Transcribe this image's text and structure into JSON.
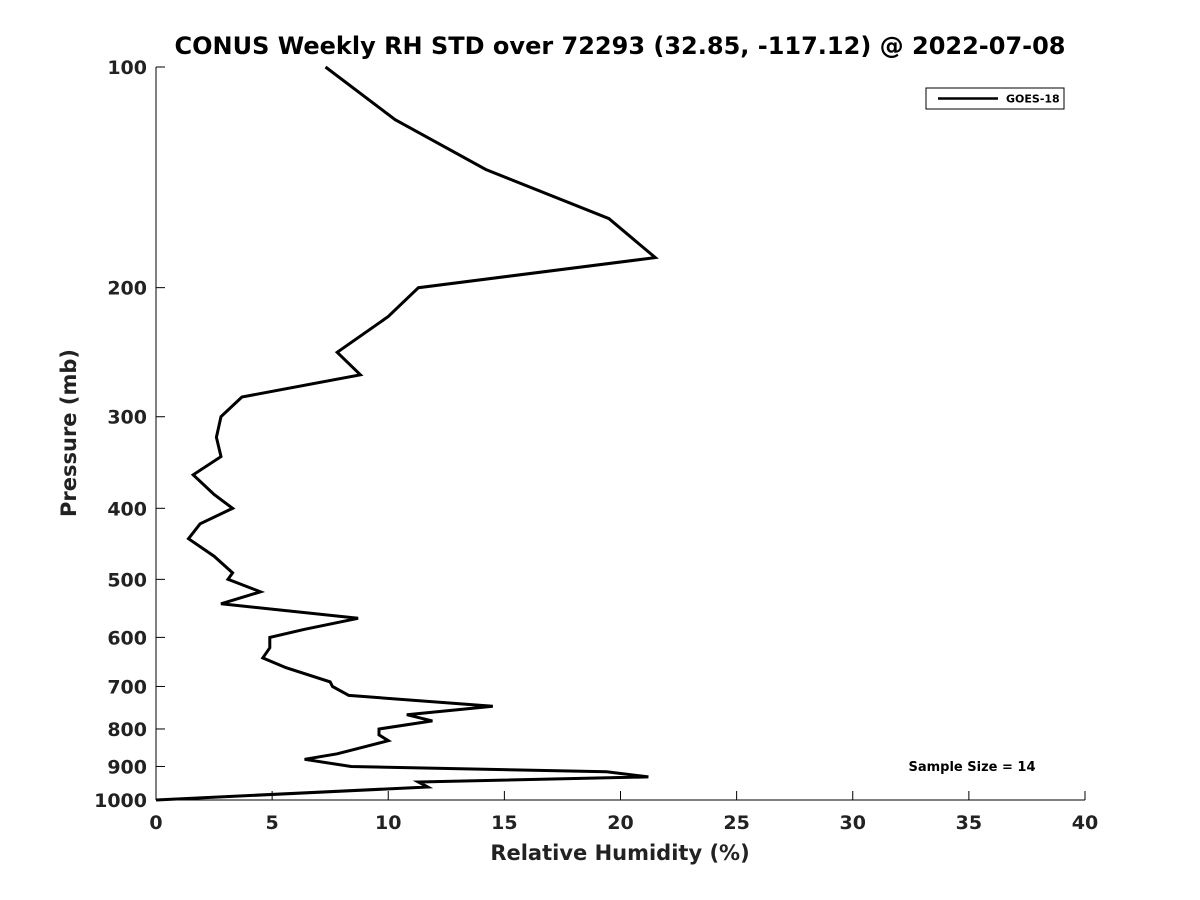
{
  "chart_data": {
    "type": "line",
    "title": "CONUS Weekly RH STD over 72293 (32.85, -117.12) @ 2022-07-08",
    "xlabel": "Relative Humidity (%)",
    "ylabel": "Pressure (mb)",
    "xlim": [
      0,
      40
    ],
    "ylim": [
      1000,
      100
    ],
    "y_scale": "log",
    "x_ticks": [
      0,
      5,
      10,
      15,
      20,
      25,
      30,
      35,
      40
    ],
    "x_tick_labels": [
      "0",
      "5",
      "10",
      "15",
      "20",
      "25",
      "30",
      "35",
      "40"
    ],
    "y_ticks": [
      100,
      200,
      300,
      400,
      500,
      600,
      700,
      800,
      900,
      1000
    ],
    "y_tick_labels": [
      "100",
      "200",
      "300",
      "400",
      "500",
      "600",
      "700",
      "800",
      "900",
      "1000"
    ],
    "grid": false,
    "legend_position": "top-right",
    "annotation": "Sample Size = 14",
    "series": [
      {
        "name": "GOES-18",
        "color": "#000000",
        "points": [
          [
            7.3,
            100
          ],
          [
            10.3,
            118
          ],
          [
            14.2,
            138
          ],
          [
            19.5,
            161
          ],
          [
            21.5,
            182
          ],
          [
            11.3,
            200
          ],
          [
            10.0,
            219
          ],
          [
            7.8,
            245
          ],
          [
            8.8,
            263
          ],
          [
            3.7,
            282
          ],
          [
            2.8,
            300
          ],
          [
            2.6,
            320
          ],
          [
            2.8,
            340
          ],
          [
            1.6,
            360
          ],
          [
            2.5,
            383
          ],
          [
            3.3,
            400
          ],
          [
            1.9,
            420
          ],
          [
            1.4,
            440
          ],
          [
            2.5,
            465
          ],
          [
            3.3,
            490
          ],
          [
            3.1,
            500
          ],
          [
            4.5,
            520
          ],
          [
            2.8,
            540
          ],
          [
            8.7,
            565
          ],
          [
            6.4,
            585
          ],
          [
            4.9,
            600
          ],
          [
            4.9,
            620
          ],
          [
            4.6,
            640
          ],
          [
            5.6,
            660
          ],
          [
            7.5,
            690
          ],
          [
            7.6,
            700
          ],
          [
            8.3,
            720
          ],
          [
            14.5,
            745
          ],
          [
            10.8,
            765
          ],
          [
            11.9,
            780
          ],
          [
            9.6,
            800
          ],
          [
            9.6,
            815
          ],
          [
            10.0,
            830
          ],
          [
            7.8,
            865
          ],
          [
            6.4,
            880
          ],
          [
            8.4,
            900
          ],
          [
            19.4,
            915
          ],
          [
            21.2,
            930
          ],
          [
            11.3,
            945
          ],
          [
            11.7,
            960
          ],
          [
            0.0,
            1000
          ]
        ]
      }
    ]
  }
}
